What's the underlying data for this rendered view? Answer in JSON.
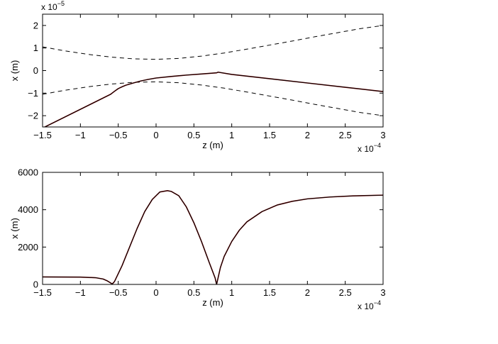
{
  "chart_data": [
    {
      "type": "line",
      "xlabel": "z (m)",
      "ylabel": "x (m)",
      "x_multiplier": {
        "base": "x 10",
        "exponent": "−4"
      },
      "y_multiplier": {
        "base": "x 10",
        "exponent": "−5"
      },
      "xlim": [
        -1.5,
        3
      ],
      "ylim": [
        -2.5,
        2.5
      ],
      "xticks": [
        -1.5,
        -1,
        -0.5,
        0,
        0.5,
        1,
        1.5,
        2,
        2.5,
        3
      ],
      "xtick_labels": [
        "−1.5",
        "−1",
        "−0.5",
        "0",
        "0.5",
        "1",
        "1.5",
        "2",
        "2.5",
        "3"
      ],
      "yticks": [
        -2,
        -1,
        0,
        1,
        2
      ],
      "ytick_labels": [
        "−2",
        "−1",
        "0",
        "1",
        "2"
      ],
      "grid": false,
      "series": [
        {
          "style": "dashed",
          "color": "#000000",
          "x": [
            -1.5,
            -1.2,
            -0.9,
            -0.6,
            -0.3,
            0,
            0.3,
            0.6,
            0.9,
            1.2,
            1.5,
            1.8,
            2.1,
            2.4,
            2.7,
            3.0
          ],
          "y": [
            1.05,
            0.87,
            0.72,
            0.6,
            0.52,
            0.5,
            0.54,
            0.64,
            0.78,
            0.95,
            1.13,
            1.31,
            1.5,
            1.68,
            1.86,
            2.0
          ]
        },
        {
          "style": "dashed",
          "color": "#000000",
          "x": [
            -1.5,
            -1.2,
            -0.9,
            -0.6,
            -0.3,
            0,
            0.3,
            0.6,
            0.9,
            1.2,
            1.5,
            1.8,
            2.1,
            2.4,
            2.7,
            3.0
          ],
          "y": [
            -1.05,
            -0.87,
            -0.72,
            -0.6,
            -0.52,
            -0.5,
            -0.54,
            -0.64,
            -0.78,
            -0.95,
            -1.13,
            -1.31,
            -1.5,
            -1.68,
            -1.86,
            -2.0
          ]
        },
        {
          "style": "solid",
          "color": "#8b0000",
          "x": [
            -1.5,
            -0.6,
            -0.55,
            -0.5,
            -0.45,
            -0.4,
            -0.3,
            -0.2,
            -0.1,
            0,
            0.2,
            0.4,
            0.6,
            0.8,
            0.82,
            1.0,
            1.5,
            2.0,
            2.5,
            3.0
          ],
          "y": [
            -2.55,
            -1.05,
            -0.92,
            -0.8,
            -0.72,
            -0.65,
            -0.55,
            -0.46,
            -0.39,
            -0.33,
            -0.26,
            -0.2,
            -0.15,
            -0.1,
            -0.07,
            -0.17,
            -0.36,
            -0.55,
            -0.74,
            -0.93
          ]
        },
        {
          "style": "solid",
          "color": "#000000",
          "x": [
            -1.5,
            -0.6,
            -0.55,
            -0.5,
            -0.45,
            -0.4,
            -0.3,
            -0.2,
            -0.1,
            0,
            0.2,
            0.4,
            0.6,
            0.8,
            0.82,
            1.0,
            1.5,
            2.0,
            2.5,
            3.0
          ],
          "y": [
            -2.55,
            -1.05,
            -0.92,
            -0.8,
            -0.72,
            -0.65,
            -0.55,
            -0.46,
            -0.39,
            -0.33,
            -0.26,
            -0.2,
            -0.15,
            -0.1,
            -0.07,
            -0.17,
            -0.36,
            -0.55,
            -0.74,
            -0.93
          ]
        }
      ]
    },
    {
      "type": "line",
      "xlabel": "z (m)",
      "ylabel": "x (m)",
      "x_multiplier": {
        "base": "x 10",
        "exponent": "−4"
      },
      "xlim": [
        -1.5,
        3
      ],
      "ylim": [
        0,
        6000
      ],
      "xticks": [
        -1.5,
        -1,
        -0.5,
        0,
        0.5,
        1,
        1.5,
        2,
        2.5,
        3
      ],
      "xtick_labels": [
        "−1.5",
        "−1",
        "−0.5",
        "0",
        "0.5",
        "1",
        "1.5",
        "2",
        "2.5",
        "3"
      ],
      "yticks": [
        0,
        2000,
        4000,
        6000
      ],
      "ytick_labels": [
        "0",
        "2000",
        "4000",
        "6000"
      ],
      "grid": false,
      "series": [
        {
          "style": "solid",
          "color": "#8b0000",
          "x": [
            -1.5,
            -1.0,
            -0.8,
            -0.7,
            -0.65,
            -0.6,
            -0.58,
            -0.55,
            -0.45,
            -0.35,
            -0.25,
            -0.15,
            -0.05,
            0.05,
            0.15,
            0.2,
            0.3,
            0.4,
            0.5,
            0.6,
            0.7,
            0.78,
            0.8,
            0.85,
            0.9,
            1.0,
            1.1,
            1.2,
            1.4,
            1.6,
            1.8,
            2.0,
            2.3,
            2.6,
            3.0
          ],
          "y": [
            400,
            390,
            360,
            290,
            200,
            80,
            20,
            150,
            1000,
            2000,
            3000,
            3900,
            4550,
            4950,
            5020,
            4980,
            4750,
            4150,
            3300,
            2300,
            1200,
            350,
            0,
            900,
            1500,
            2300,
            2900,
            3350,
            3900,
            4250,
            4450,
            4580,
            4680,
            4740,
            4780
          ]
        },
        {
          "style": "solid",
          "color": "#000000",
          "x": [
            -1.5,
            -1.0,
            -0.8,
            -0.7,
            -0.65,
            -0.6,
            -0.58,
            -0.55,
            -0.45,
            -0.35,
            -0.25,
            -0.15,
            -0.05,
            0.05,
            0.15,
            0.2,
            0.3,
            0.4,
            0.5,
            0.6,
            0.7,
            0.78,
            0.8,
            0.85,
            0.9,
            1.0,
            1.1,
            1.2,
            1.4,
            1.6,
            1.8,
            2.0,
            2.3,
            2.6,
            3.0
          ],
          "y": [
            400,
            390,
            360,
            290,
            200,
            80,
            20,
            150,
            1000,
            2000,
            3000,
            3900,
            4550,
            4950,
            5020,
            4980,
            4750,
            4150,
            3300,
            2300,
            1200,
            350,
            0,
            900,
            1500,
            2300,
            2900,
            3350,
            3900,
            4250,
            4450,
            4580,
            4680,
            4740,
            4780
          ]
        }
      ]
    }
  ]
}
